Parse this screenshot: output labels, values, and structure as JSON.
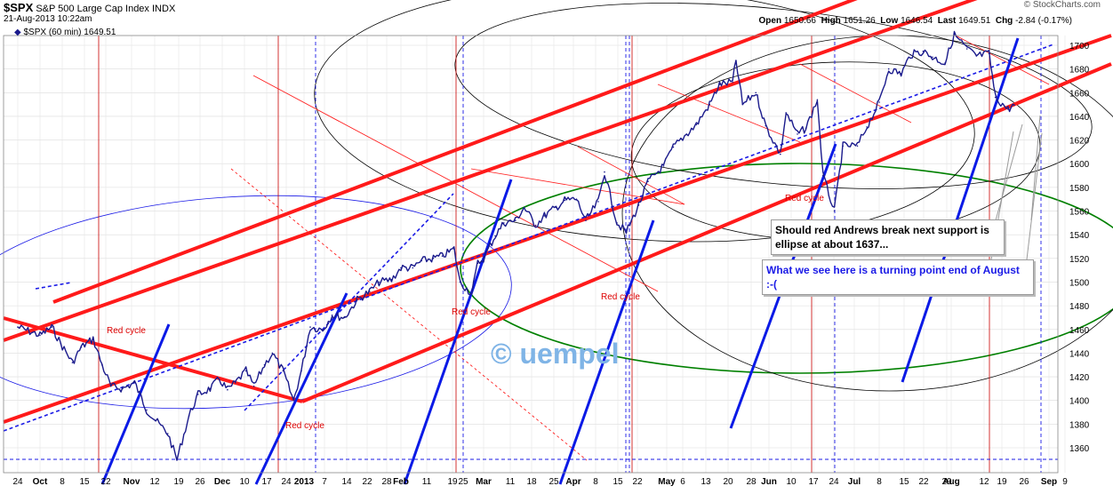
{
  "header": {
    "symbol": "$SPX",
    "name": "S&P 500 Large Cap Index",
    "exchange": "INDX",
    "date": "21-Aug-2013 10:22am",
    "legend": "$SPX (60 min) 1649.51",
    "credit": "© StockCharts.com",
    "open_label": "Open",
    "open": "1650.66",
    "high_label": "High",
    "high": "1651.26",
    "low_label": "Low",
    "low": "1646.54",
    "last_label": "Last",
    "last": "1649.51",
    "chg_label": "Chg",
    "chg": "-2.84 (-0.17%)"
  },
  "annotations": {
    "note1": "Should red Andrews break next support is ellipse at about 1637...",
    "note2": "What we see here is a turning point end of August :-(",
    "watermark": "© uempel",
    "red_cycle": "Red cycle"
  },
  "colors": {
    "price": "#1a1a8c",
    "pitchfork": "#ff1a1a",
    "cycle": "#cc0000",
    "blue_line": "#0a1ae6",
    "ellipse_green": "#008000",
    "ellipse_black": "#000000",
    "grid": "#d8d8d8"
  },
  "chart_data": {
    "type": "line",
    "series": [
      {
        "name": "$SPX (60 min)",
        "values": [
          [
            "Sep 24",
            1462
          ],
          [
            "Oct 1",
            1455
          ],
          [
            "Oct 5",
            1462
          ],
          [
            "Oct 8",
            1448
          ],
          [
            "Oct 12",
            1432
          ],
          [
            "Oct 15",
            1445
          ],
          [
            "Oct 19",
            1452
          ],
          [
            "Oct 22",
            1430
          ],
          [
            "Oct 25",
            1412
          ],
          [
            "Oct 29",
            1410
          ],
          [
            "Nov 2",
            1415
          ],
          [
            "Nov 6",
            1392
          ],
          [
            "Nov 9",
            1383
          ],
          [
            "Nov 13",
            1372
          ],
          [
            "Nov 16",
            1350
          ],
          [
            "Nov 20",
            1387
          ],
          [
            "Nov 23",
            1405
          ],
          [
            "Nov 27",
            1410
          ],
          [
            "Nov 30",
            1418
          ],
          [
            "Dec 3",
            1409
          ],
          [
            "Dec 6",
            1415
          ],
          [
            "Dec 10",
            1425
          ],
          [
            "Dec 13",
            1412
          ],
          [
            "Dec 17",
            1430
          ],
          [
            "Dec 20",
            1440
          ],
          [
            "Dec 24",
            1425
          ],
          [
            "Dec 28",
            1400
          ],
          [
            "Dec 31",
            1425
          ],
          [
            "Jan 3",
            1462
          ],
          [
            "Jan 7",
            1460
          ],
          [
            "Jan 10",
            1472
          ],
          [
            "Jan 14",
            1470
          ],
          [
            "Jan 18",
            1485
          ],
          [
            "Jan 22",
            1492
          ],
          [
            "Jan 25",
            1500
          ],
          [
            "Jan 29",
            1502
          ],
          [
            "Feb 1",
            1512
          ],
          [
            "Feb 5",
            1512
          ],
          [
            "Feb 8",
            1518
          ],
          [
            "Feb 12",
            1520
          ],
          [
            "Feb 15",
            1522
          ],
          [
            "Feb 19",
            1528
          ],
          [
            "Feb 21",
            1500
          ],
          [
            "Feb 25",
            1490
          ],
          [
            "Feb 27",
            1516
          ],
          [
            "Mar 1",
            1520
          ],
          [
            "Mar 5",
            1539
          ],
          [
            "Mar 8",
            1550
          ],
          [
            "Mar 12",
            1552
          ],
          [
            "Mar 15",
            1563
          ],
          [
            "Mar 19",
            1548
          ],
          [
            "Mar 22",
            1556
          ],
          [
            "Mar 26",
            1563
          ],
          [
            "Mar 29",
            1569
          ],
          [
            "Apr 2",
            1570
          ],
          [
            "Apr 5",
            1552
          ],
          [
            "Apr 9",
            1568
          ],
          [
            "Apr 11",
            1593
          ],
          [
            "Apr 15",
            1550
          ],
          [
            "Apr 18",
            1542
          ],
          [
            "Apr 22",
            1565
          ],
          [
            "Apr 25",
            1585
          ],
          [
            "Apr 30",
            1598
          ],
          [
            "May 3",
            1614
          ],
          [
            "May 7",
            1625
          ],
          [
            "May 10",
            1633
          ],
          [
            "May 14",
            1650
          ],
          [
            "May 17",
            1667
          ],
          [
            "May 21",
            1669
          ],
          [
            "May 22",
            1687
          ],
          [
            "May 24",
            1650
          ],
          [
            "May 28",
            1660
          ],
          [
            "May 31",
            1632
          ],
          [
            "Jun 5",
            1608
          ],
          [
            "Jun 7",
            1643
          ],
          [
            "Jun 11",
            1625
          ],
          [
            "Jun 14",
            1630
          ],
          [
            "Jun 18",
            1654
          ],
          [
            "Jun 20",
            1590
          ],
          [
            "Jun 24",
            1560
          ],
          [
            "Jun 27",
            1615
          ],
          [
            "Jul 2",
            1615
          ],
          [
            "Jul 5",
            1631
          ],
          [
            "Jul 9",
            1652
          ],
          [
            "Jul 12",
            1680
          ],
          [
            "Jul 16",
            1676
          ],
          [
            "Jul 19",
            1692
          ],
          [
            "Jul 23",
            1695
          ],
          [
            "Jul 26",
            1690
          ],
          [
            "Jul 30",
            1685
          ],
          [
            "Aug 2",
            1709
          ],
          [
            "Aug 6",
            1697
          ],
          [
            "Aug 9",
            1691
          ],
          [
            "Aug 13",
            1693
          ],
          [
            "Aug 15",
            1656
          ],
          [
            "Aug 19",
            1646
          ],
          [
            "Aug 21",
            1649.51
          ]
        ]
      }
    ],
    "ylim": [
      1345,
      1720
    ],
    "y_ticks": [
      1360,
      1380,
      1400,
      1420,
      1440,
      1460,
      1480,
      1500,
      1520,
      1540,
      1560,
      1580,
      1600,
      1620,
      1640,
      1660,
      1680,
      1700
    ],
    "x_ticks": [
      [
        "24",
        ""
      ],
      [
        "Oct",
        "b"
      ],
      [
        "8",
        ""
      ],
      [
        "15",
        ""
      ],
      [
        "22",
        ""
      ],
      [
        "Nov",
        "b"
      ],
      [
        "12",
        ""
      ],
      [
        "19",
        ""
      ],
      [
        "26",
        ""
      ],
      [
        "Dec",
        "b"
      ],
      [
        "10",
        ""
      ],
      [
        "17",
        ""
      ],
      [
        "24",
        ""
      ],
      [
        "2013",
        "b"
      ],
      [
        "7",
        ""
      ],
      [
        "14",
        ""
      ],
      [
        "22",
        ""
      ],
      [
        "28",
        ""
      ],
      [
        "Feb",
        "b"
      ],
      [
        "11",
        ""
      ],
      [
        "19",
        ""
      ],
      [
        "25",
        ""
      ],
      [
        "Mar",
        "b"
      ],
      [
        "11",
        ""
      ],
      [
        "18",
        ""
      ],
      [
        "25",
        ""
      ],
      [
        "Apr",
        "b"
      ],
      [
        "8",
        ""
      ],
      [
        "15",
        ""
      ],
      [
        "22",
        ""
      ],
      [
        "May",
        "b"
      ],
      [
        "6",
        ""
      ],
      [
        "13",
        ""
      ],
      [
        "20",
        ""
      ],
      [
        "28",
        ""
      ],
      [
        "Jun",
        "b"
      ],
      [
        "10",
        ""
      ],
      [
        "17",
        ""
      ],
      [
        "24",
        ""
      ],
      [
        "Jul",
        "b"
      ],
      [
        "8",
        ""
      ],
      [
        "15",
        ""
      ],
      [
        "22",
        ""
      ],
      [
        "29",
        ""
      ],
      [
        "Aug",
        "b"
      ],
      [
        "12",
        ""
      ],
      [
        "19",
        ""
      ],
      [
        "26",
        ""
      ],
      [
        "Sep",
        "b"
      ],
      [
        "9",
        ""
      ]
    ],
    "grid": true
  }
}
